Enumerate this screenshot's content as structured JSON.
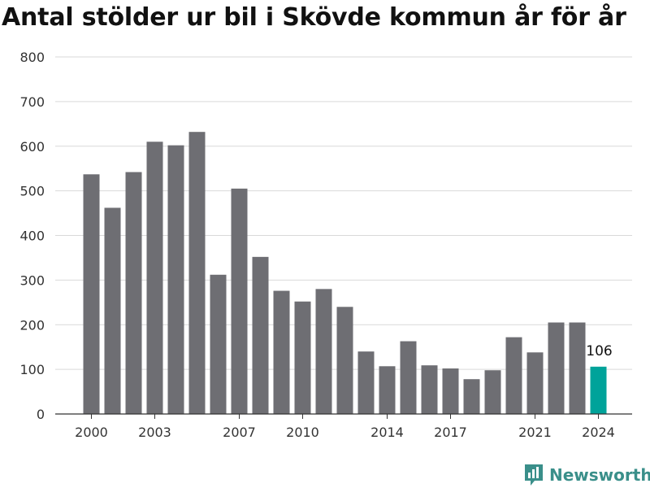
{
  "title": "Antal stölder ur bil i Skövde kommun år för år",
  "brand": {
    "name": "Newsworthy",
    "icon": "newsworthy-logo-icon",
    "color": "#3a8f8a"
  },
  "colors": {
    "bar": "#6e6e73",
    "highlight": "#00a39a",
    "grid": "#d9d9d9",
    "text": "#333333"
  },
  "chart_data": {
    "type": "bar",
    "title": "Antal stölder ur bil i Skövde kommun år för år",
    "xlabel": "",
    "ylabel": "",
    "ylim": [
      0,
      800
    ],
    "yticks": [
      0,
      100,
      200,
      300,
      400,
      500,
      600,
      700,
      800
    ],
    "grid": true,
    "categories": [
      2000,
      2001,
      2002,
      2003,
      2004,
      2005,
      2006,
      2007,
      2008,
      2009,
      2010,
      2011,
      2012,
      2013,
      2014,
      2015,
      2016,
      2017,
      2018,
      2019,
      2020,
      2021,
      2022,
      2023,
      2024
    ],
    "values": [
      537,
      462,
      542,
      610,
      602,
      632,
      312,
      505,
      352,
      276,
      252,
      280,
      240,
      140,
      107,
      163,
      109,
      102,
      78,
      98,
      172,
      138,
      205,
      205,
      106
    ],
    "xtick_labels": [
      "2000",
      "2003",
      "2007",
      "2010",
      "2014",
      "2017",
      "2021",
      "2024"
    ],
    "highlight": {
      "category": 2024,
      "label": "106"
    }
  }
}
